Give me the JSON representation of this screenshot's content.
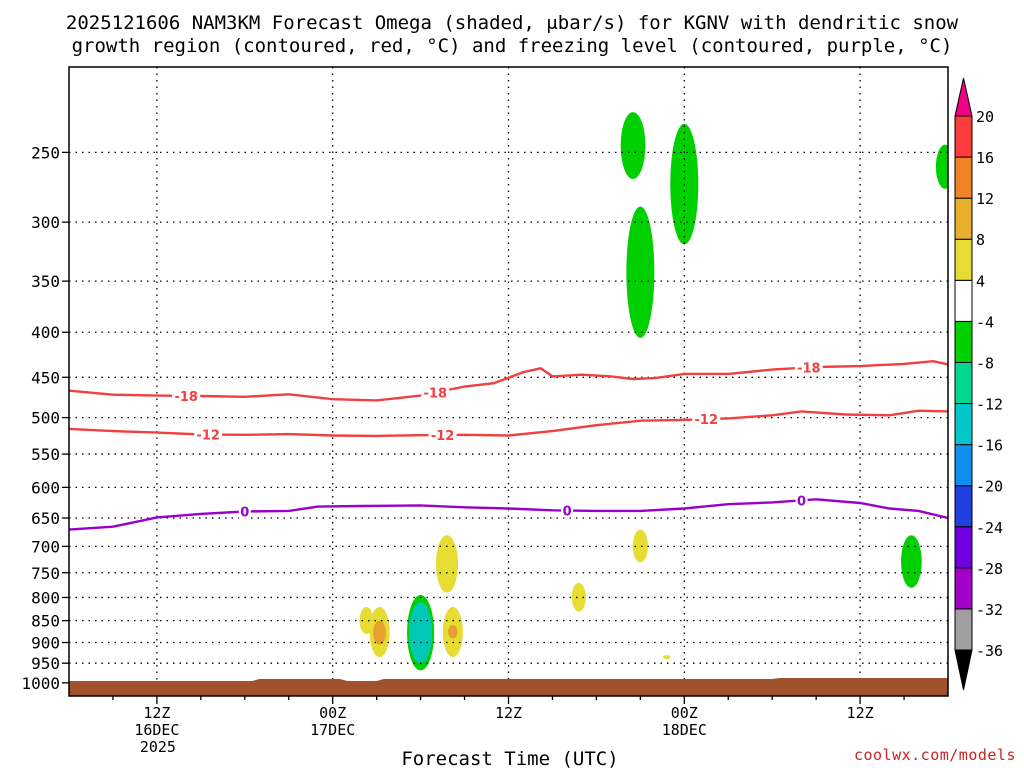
{
  "chart_data": {
    "type": "time-height contour plot",
    "title_line1": "2025121606 NAM3KM Forecast Omega (shaded, μbar/s) for KGNV with dendritic snow",
    "title_line2": "growth region (contoured, red, °C) and freezing level (contoured, purple, °C)",
    "xlabel": "Forecast Time (UTC)",
    "credit": "coolwx.com/models",
    "x_range_hours": [
      0,
      60
    ],
    "y_range_hPa": [
      200,
      1035
    ],
    "y_ticks": [
      250,
      300,
      350,
      400,
      450,
      500,
      550,
      600,
      650,
      700,
      750,
      800,
      850,
      900,
      950,
      1000
    ],
    "x_ticks": [
      {
        "hour": 6,
        "line1": "12Z",
        "line2": "16DEC",
        "line3": "2025"
      },
      {
        "hour": 18,
        "line1": "00Z",
        "line2": "17DEC",
        "line3": ""
      },
      {
        "hour": 30,
        "line1": "12Z",
        "line2": "",
        "line3": ""
      },
      {
        "hour": 42,
        "line1": "00Z",
        "line2": "18DEC",
        "line3": ""
      },
      {
        "hour": 54,
        "line1": "12Z",
        "line2": "",
        "line3": ""
      }
    ],
    "colorbar": {
      "levels": [
        -36,
        -32,
        -28,
        -24,
        -20,
        -16,
        -12,
        -8,
        -4,
        4,
        8,
        12,
        16,
        20
      ],
      "colors": [
        "#a0a0a0",
        "#a000c8",
        "#7000e0",
        "#2040e0",
        "#1090ee",
        "#00c8c8",
        "#00d890",
        "#00d000",
        "#ffffff",
        "#e6dc32",
        "#e6af2d",
        "#f08228",
        "#fa3c3c",
        "#f00082"
      ],
      "under_color": "#000000",
      "over_color": "#f00082"
    },
    "contours": [
      {
        "level": -18,
        "color": "#f04040",
        "label": "-18",
        "points": [
          [
            0,
            466
          ],
          [
            3,
            471
          ],
          [
            6,
            472
          ],
          [
            9,
            472.5
          ],
          [
            12,
            473.5
          ],
          [
            15,
            470.5
          ],
          [
            18,
            476.5
          ],
          [
            21,
            478
          ],
          [
            24,
            472
          ],
          [
            27,
            461
          ],
          [
            29,
            457
          ],
          [
            31,
            444
          ],
          [
            32.2,
            439.5
          ],
          [
            33,
            449
          ],
          [
            35,
            447
          ],
          [
            37,
            449
          ],
          [
            38.5,
            452
          ],
          [
            40,
            451
          ],
          [
            42,
            446
          ],
          [
            45,
            446
          ],
          [
            48,
            441
          ],
          [
            51,
            438
          ],
          [
            54,
            437
          ],
          [
            57,
            434.5
          ],
          [
            59,
            431.5
          ],
          [
            60,
            435
          ]
        ],
        "labels_at": [
          8,
          25,
          50.5
        ]
      },
      {
        "level": -12,
        "color": "#f04040",
        "label": "-12",
        "points": [
          [
            0,
            515
          ],
          [
            3,
            518
          ],
          [
            6,
            520
          ],
          [
            9,
            522.5
          ],
          [
            12,
            523
          ],
          [
            15,
            522
          ],
          [
            18,
            524
          ],
          [
            21,
            524.5
          ],
          [
            24,
            523.5
          ],
          [
            27,
            523
          ],
          [
            30,
            524
          ],
          [
            33,
            518
          ],
          [
            36,
            510
          ],
          [
            39,
            504
          ],
          [
            42,
            503
          ],
          [
            45,
            501
          ],
          [
            48,
            497
          ],
          [
            50,
            492
          ],
          [
            53,
            496
          ],
          [
            56,
            497
          ],
          [
            58,
            491
          ],
          [
            60,
            492
          ]
        ],
        "labels_at": [
          9.5,
          25.5,
          43.5
        ]
      },
      {
        "level": 0,
        "color": "#9a00cc",
        "label": "0",
        "points": [
          [
            0,
            670
          ],
          [
            3,
            665
          ],
          [
            6,
            649
          ],
          [
            9,
            643
          ],
          [
            12,
            639
          ],
          [
            15,
            638
          ],
          [
            17,
            631
          ],
          [
            20,
            630
          ],
          [
            24,
            629
          ],
          [
            27,
            632
          ],
          [
            30,
            634
          ],
          [
            33,
            637
          ],
          [
            36,
            638
          ],
          [
            39,
            638
          ],
          [
            42,
            634
          ],
          [
            45,
            627
          ],
          [
            48,
            624
          ],
          [
            51,
            619
          ],
          [
            54,
            625
          ],
          [
            56,
            634
          ],
          [
            58,
            638
          ],
          [
            60,
            650
          ]
        ],
        "labels_at": [
          12,
          34,
          50
        ]
      }
    ],
    "shaded_regions": [
      {
        "value_band": "-8 to -4",
        "color": "#00d000",
        "hour": 38.5,
        "p_top": 225,
        "p_bot": 268
      },
      {
        "value_band": "-8 to -4",
        "color": "#00d000",
        "hour": 42.0,
        "p_top": 232,
        "p_bot": 318
      },
      {
        "value_band": "-8 to -4",
        "color": "#00d000",
        "hour": 39.0,
        "p_top": 288,
        "p_bot": 406
      },
      {
        "value_band": "-8 to -4",
        "color": "#00d000",
        "hour": 59.8,
        "p_top": 245,
        "p_bot": 275
      },
      {
        "value_band": "-8 to -4",
        "color": "#00d000",
        "hour": 57.5,
        "p_top": 680,
        "p_bot": 780
      },
      {
        "value_band": "-8 to -4",
        "color": "#00d000",
        "hour": 24.0,
        "p_top": 795,
        "p_bot": 968
      },
      {
        "value_band": "-16 to -8",
        "color": "#00c8b4",
        "hour": 24.0,
        "p_top": 810,
        "p_bot": 950
      },
      {
        "value_band": "4 to 8",
        "color": "#e6dc32",
        "hour": 25.8,
        "p_top": 680,
        "p_bot": 790
      },
      {
        "value_band": "4 to 8",
        "color": "#e6dc32",
        "hour": 26.2,
        "p_top": 820,
        "p_bot": 935
      },
      {
        "value_band": "4 to 8",
        "color": "#e6dc32",
        "hour": 21.2,
        "p_top": 820,
        "p_bot": 935
      },
      {
        "value_band": "4 to 8",
        "color": "#e6dc32",
        "hour": 20.3,
        "p_top": 820,
        "p_bot": 880
      },
      {
        "value_band": "4 to 8",
        "color": "#e6dc32",
        "hour": 34.8,
        "p_top": 770,
        "p_bot": 830
      },
      {
        "value_band": "4 to 8",
        "color": "#e6dc32",
        "hour": 39.0,
        "p_top": 670,
        "p_bot": 730
      },
      {
        "value_band": "4 to 8",
        "color": "#e6dc32",
        "hour": 40.8,
        "p_top": 930,
        "p_bot": 940
      },
      {
        "value_band": "8 to 12",
        "color": "#e6a02d",
        "hour": 21.2,
        "p_top": 850,
        "p_bot": 905
      },
      {
        "value_band": "8 to 12",
        "color": "#e6a02d",
        "hour": 26.2,
        "p_top": 860,
        "p_bot": 890
      }
    ],
    "terrain_color": "#a0522d"
  }
}
